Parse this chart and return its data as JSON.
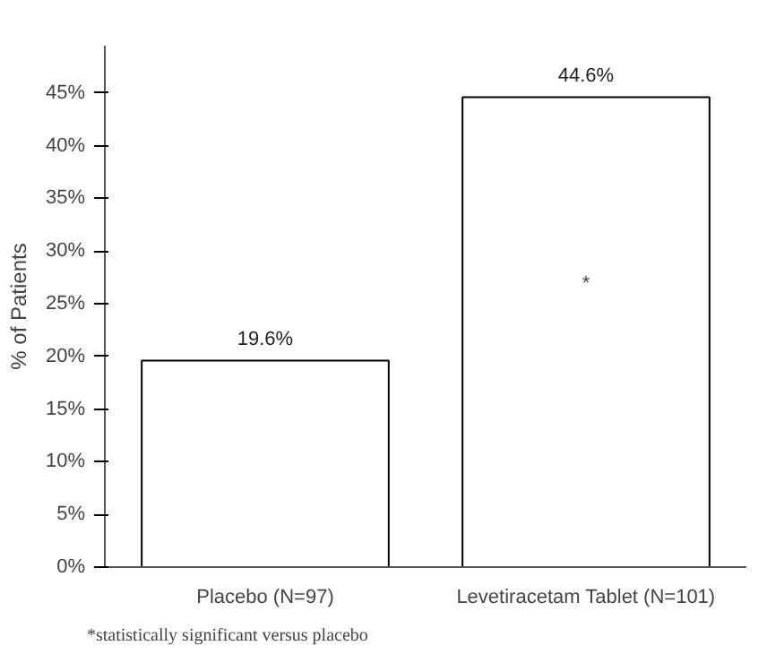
{
  "chart_data": {
    "type": "bar",
    "ylabel": "% of Patients",
    "categories": [
      "Placebo (N=97)",
      "Levetiracetam Tablet (N=101)"
    ],
    "values": [
      19.6,
      44.6
    ],
    "value_labels": [
      "19.6%",
      "44.6%"
    ],
    "color": "#ffffff",
    "ylim": [
      0,
      45
    ],
    "yticks": [
      {
        "value": 0,
        "label": "0%"
      },
      {
        "value": 5,
        "label": "5%"
      },
      {
        "value": 10,
        "label": "10%"
      },
      {
        "value": 15,
        "label": "15%"
      },
      {
        "value": 20,
        "label": "20%"
      },
      {
        "value": 25,
        "label": "25%"
      },
      {
        "value": 30,
        "label": "30%"
      },
      {
        "value": 35,
        "label": "35%"
      },
      {
        "value": 40,
        "label": "40%"
      },
      {
        "value": 45,
        "label": "45%"
      }
    ],
    "grid": false,
    "annotations": [
      "*",
      "*statistically significant versus placebo"
    ]
  }
}
